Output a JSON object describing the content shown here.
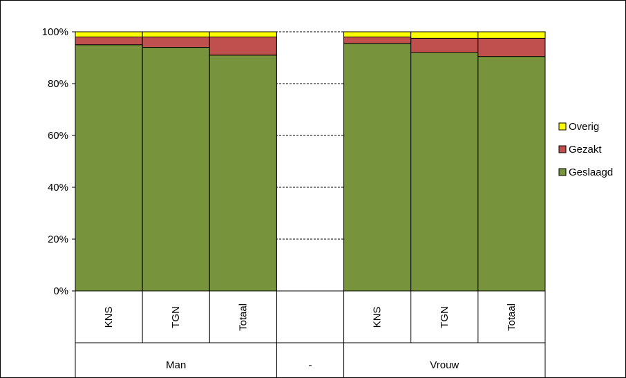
{
  "chart_data": {
    "type": "bar",
    "stacked": "percent",
    "categories": [
      "KNS",
      "TGN",
      "Totaal",
      "",
      "KNS",
      "TGN",
      "Totaal"
    ],
    "groups": [
      {
        "label": "Man",
        "span": 3
      },
      {
        "label": "-",
        "span": 1
      },
      {
        "label": "Vrouw",
        "span": 3
      }
    ],
    "series": [
      {
        "name": "Geslaagd",
        "color": "#77933C",
        "values": [
          95,
          94,
          91,
          null,
          95.5,
          92,
          90.5
        ]
      },
      {
        "name": "Gezakt",
        "color": "#C0504D",
        "values": [
          3,
          4,
          7,
          null,
          2.5,
          5.5,
          7
        ]
      },
      {
        "name": "Overig",
        "color": "#FFFF00",
        "values": [
          2,
          2,
          2,
          null,
          2,
          2.5,
          2.5
        ]
      }
    ],
    "ylim": [
      0,
      100
    ],
    "yticks": [
      "0%",
      "20%",
      "40%",
      "60%",
      "80%",
      "100%"
    ],
    "ytick_values": [
      0,
      20,
      40,
      60,
      80,
      100
    ],
    "grid": "dashed horizontal",
    "legend": {
      "position": "right",
      "order": [
        "Overig",
        "Gezakt",
        "Geslaagd"
      ]
    },
    "title": "",
    "xlabel": "",
    "ylabel": ""
  }
}
